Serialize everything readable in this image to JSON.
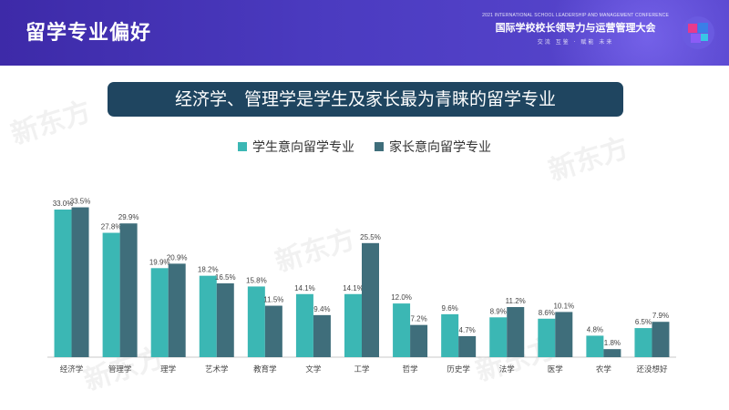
{
  "header": {
    "title": "留学专业偏好",
    "conference_en": "2021 INTERNATIONAL SCHOOL LEADERSHIP AND MANAGEMENT CONFERENCE",
    "conference_cn": "国际学校校长领导力与运营管理大会",
    "slogan": "交流 互鉴 · 赋能 未来",
    "watermark": "新东方"
  },
  "banner": {
    "text": "经济学、管理学是学生及家长最为青睐的留学专业"
  },
  "colors": {
    "student": "#3bb7b4",
    "parent": "#3f6e7b",
    "header_bg": "#4536b5",
    "banner_bg": "#1f4560"
  },
  "chart_data": {
    "type": "bar",
    "categories": [
      "经济学",
      "管理学",
      "理学",
      "艺术学",
      "教育学",
      "文学",
      "工学",
      "哲学",
      "历史学",
      "法学",
      "医学",
      "农学",
      "还没想好"
    ],
    "series": [
      {
        "name": "学生意向留学专业",
        "values": [
          33.0,
          27.8,
          19.9,
          18.2,
          15.8,
          14.1,
          14.1,
          12.0,
          9.6,
          8.9,
          8.6,
          4.8,
          6.5
        ],
        "labels": [
          "33.0%",
          "27.8%",
          "19.9%",
          "18.2%",
          "15.8%",
          "14.1%",
          "14.1%",
          "12.0%",
          "9.6%",
          "8.9%",
          "8.6%",
          "4.8%",
          "6.5%"
        ]
      },
      {
        "name": "家长意向留学专业",
        "values": [
          33.5,
          29.9,
          20.9,
          16.5,
          11.5,
          9.4,
          25.5,
          7.2,
          4.7,
          11.2,
          10.1,
          1.8,
          7.9
        ],
        "labels": [
          "33.5%",
          "29.9%",
          "20.9%",
          "16.5%",
          "11.5%",
          "9.4%",
          "25.5%",
          "7.2%",
          "4.7%",
          "11.2%",
          "10.1%",
          "1.8%",
          "7.9%"
        ]
      }
    ],
    "ylim": [
      0,
      35
    ],
    "grid": false,
    "legend_position": "top-center"
  }
}
